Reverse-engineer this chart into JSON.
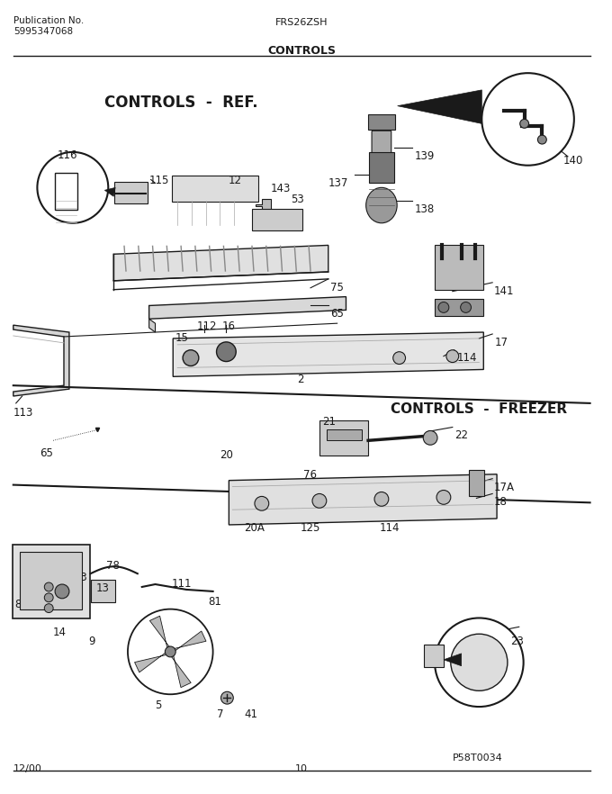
{
  "title_model": "FRS26ZSH",
  "title_pub": "Publication No.",
  "title_pub2": "5995347068",
  "title_section": "CONTROLS",
  "section_ref": "CONTROLS  -  REF.",
  "section_freezer": "CONTROLS  -  FREEZER",
  "date": "12/00",
  "page": "10",
  "photo_id": "P58T0034",
  "bg_color": "#ffffff",
  "line_color": "#1a1a1a",
  "figsize": [
    6.8,
    8.82
  ],
  "dpi": 100
}
